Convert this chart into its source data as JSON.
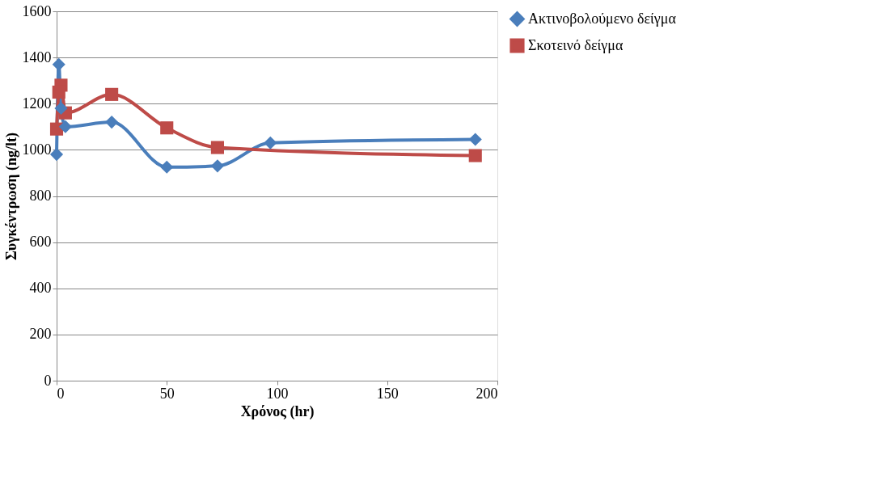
{
  "chart_data": {
    "type": "line",
    "xlabel": "Χρόνος (hr)",
    "ylabel": "Συγκέντρωση (ng/lt)",
    "xlim": [
      0,
      200
    ],
    "xticks": [
      0,
      50,
      100,
      150,
      200
    ],
    "ylim": [
      0,
      1600
    ],
    "yticks": [
      0,
      200,
      400,
      600,
      800,
      1000,
      1200,
      1400,
      1600
    ],
    "grid": "y",
    "legend": "right",
    "series": [
      {
        "name": "Ακτινοβολούμενο δείγμα",
        "color": "#4a7ebb",
        "marker": "diamond",
        "x": [
          0,
          1,
          2,
          4,
          25,
          50,
          73,
          97,
          190
        ],
        "values": [
          980,
          1370,
          1180,
          1100,
          1120,
          925,
          930,
          1030,
          1045
        ]
      },
      {
        "name": "Σκοτεινό δείγμα",
        "color": "#be4b48",
        "marker": "square",
        "x": [
          0,
          1,
          2,
          4,
          25,
          50,
          73,
          190
        ],
        "values": [
          1090,
          1250,
          1280,
          1160,
          1240,
          1095,
          1010,
          975
        ]
      }
    ]
  }
}
